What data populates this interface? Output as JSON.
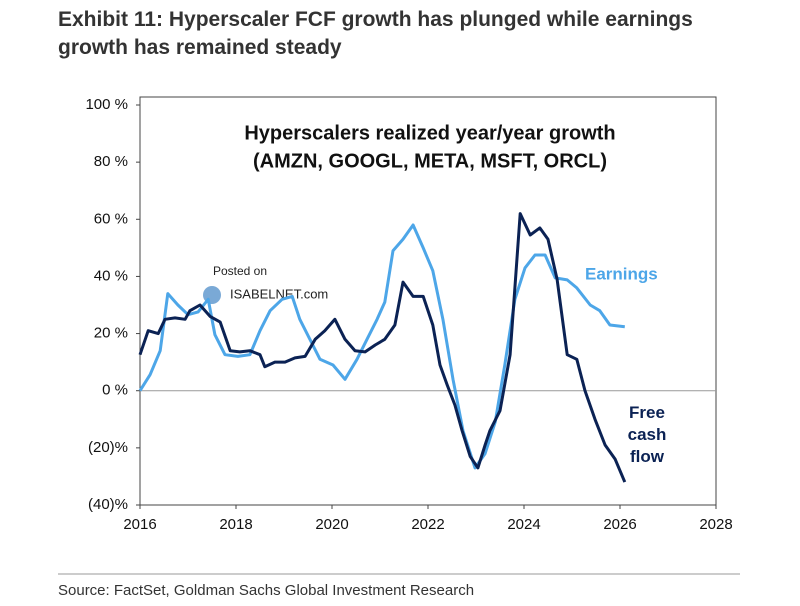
{
  "chart_data": {
    "type": "line",
    "title": "Exhibit 11: Hyperscaler FCF growth has plunged while earnings growth has remained steady",
    "subtitle": "Hyperscalers realized year/year growth",
    "subtitle2": "(AMZN, GOOGL, META, MSFT, ORCL)",
    "watermark": [
      "Posted on",
      "ISABELNET.com"
    ],
    "source": "Source: FactSet, Goldman Sachs Global Investment Research",
    "xlim": [
      2016,
      2028
    ],
    "xticks": [
      2016,
      2018,
      2020,
      2022,
      2024,
      2026,
      2028
    ],
    "ylim": [
      -40,
      100
    ],
    "yticks": [
      {
        "value": 100,
        "label": "100 %"
      },
      {
        "value": 80,
        "label": "80 %"
      },
      {
        "value": 60,
        "label": "60 %"
      },
      {
        "value": 40,
        "label": "40 %"
      },
      {
        "value": 20,
        "label": "20 %"
      },
      {
        "value": 0,
        "label": "0 %"
      },
      {
        "value": -20,
        "label": "(20)%"
      },
      {
        "value": -40,
        "label": "(40)%"
      }
    ],
    "zero_line": true,
    "series": [
      {
        "name": "Earnings",
        "color": "#4da6e8",
        "x": [
          2016.0,
          2016.21,
          2016.42,
          2016.58,
          2016.79,
          2017.0,
          2017.21,
          2017.42,
          2017.56,
          2017.77,
          2018.04,
          2018.29,
          2018.5,
          2018.71,
          2018.96,
          2019.17,
          2019.33,
          2019.54,
          2019.75,
          2020.02,
          2020.27,
          2020.52,
          2020.73,
          2020.94,
          2021.1,
          2021.27,
          2021.48,
          2021.69,
          2021.9,
          2022.1,
          2022.31,
          2022.52,
          2022.73,
          2022.98,
          2023.19,
          2023.4,
          2023.6,
          2023.81,
          2024.02,
          2024.23,
          2024.44,
          2024.65,
          2024.9,
          2025.1,
          2025.38,
          2025.58,
          2025.79,
          2026.1
        ],
        "values": [
          0,
          5.6,
          14,
          34,
          30,
          26.6,
          27.6,
          32,
          19.6,
          12.6,
          12,
          12.6,
          21,
          28,
          32,
          33,
          25,
          18,
          11,
          9,
          4,
          11,
          18,
          25,
          31,
          49,
          53,
          58,
          50,
          42,
          25,
          4,
          -14,
          -27,
          -22,
          -11,
          9,
          32,
          43,
          47.5,
          47.5,
          39.5,
          38.8,
          36,
          30,
          28,
          23,
          22.4
        ]
      },
      {
        "name": "Free cash flow",
        "color": "#0b2254",
        "x": [
          2016.0,
          2016.17,
          2016.38,
          2016.52,
          2016.73,
          2016.94,
          2017.04,
          2017.25,
          2017.46,
          2017.67,
          2017.88,
          2018.08,
          2018.29,
          2018.5,
          2018.6,
          2018.81,
          2019.02,
          2019.23,
          2019.44,
          2019.65,
          2019.85,
          2020.06,
          2020.27,
          2020.48,
          2020.69,
          2020.9,
          2021.1,
          2021.31,
          2021.48,
          2021.69,
          2021.9,
          2022.1,
          2022.25,
          2022.4,
          2022.56,
          2022.71,
          2022.88,
          2023.04,
          2023.19,
          2023.29,
          2023.5,
          2023.71,
          2023.92,
          2024.13,
          2024.33,
          2024.5,
          2024.69,
          2024.9,
          2025.1,
          2025.27,
          2025.48,
          2025.69,
          2025.9,
          2026.1
        ],
        "values": [
          12.6,
          21,
          20,
          25,
          25.5,
          25,
          28,
          30,
          26,
          24,
          14,
          13.6,
          14,
          12.6,
          8.4,
          10,
          10,
          11.5,
          12,
          18,
          21,
          25,
          18,
          14,
          13.6,
          16,
          18,
          23,
          38,
          33,
          33,
          23,
          9,
          2,
          -5,
          -14,
          -23,
          -27,
          -19,
          -14,
          -7,
          12.6,
          62,
          54.5,
          57,
          53,
          39,
          12.6,
          11,
          0,
          -10,
          -19,
          -24,
          -32
        ]
      }
    ]
  }
}
